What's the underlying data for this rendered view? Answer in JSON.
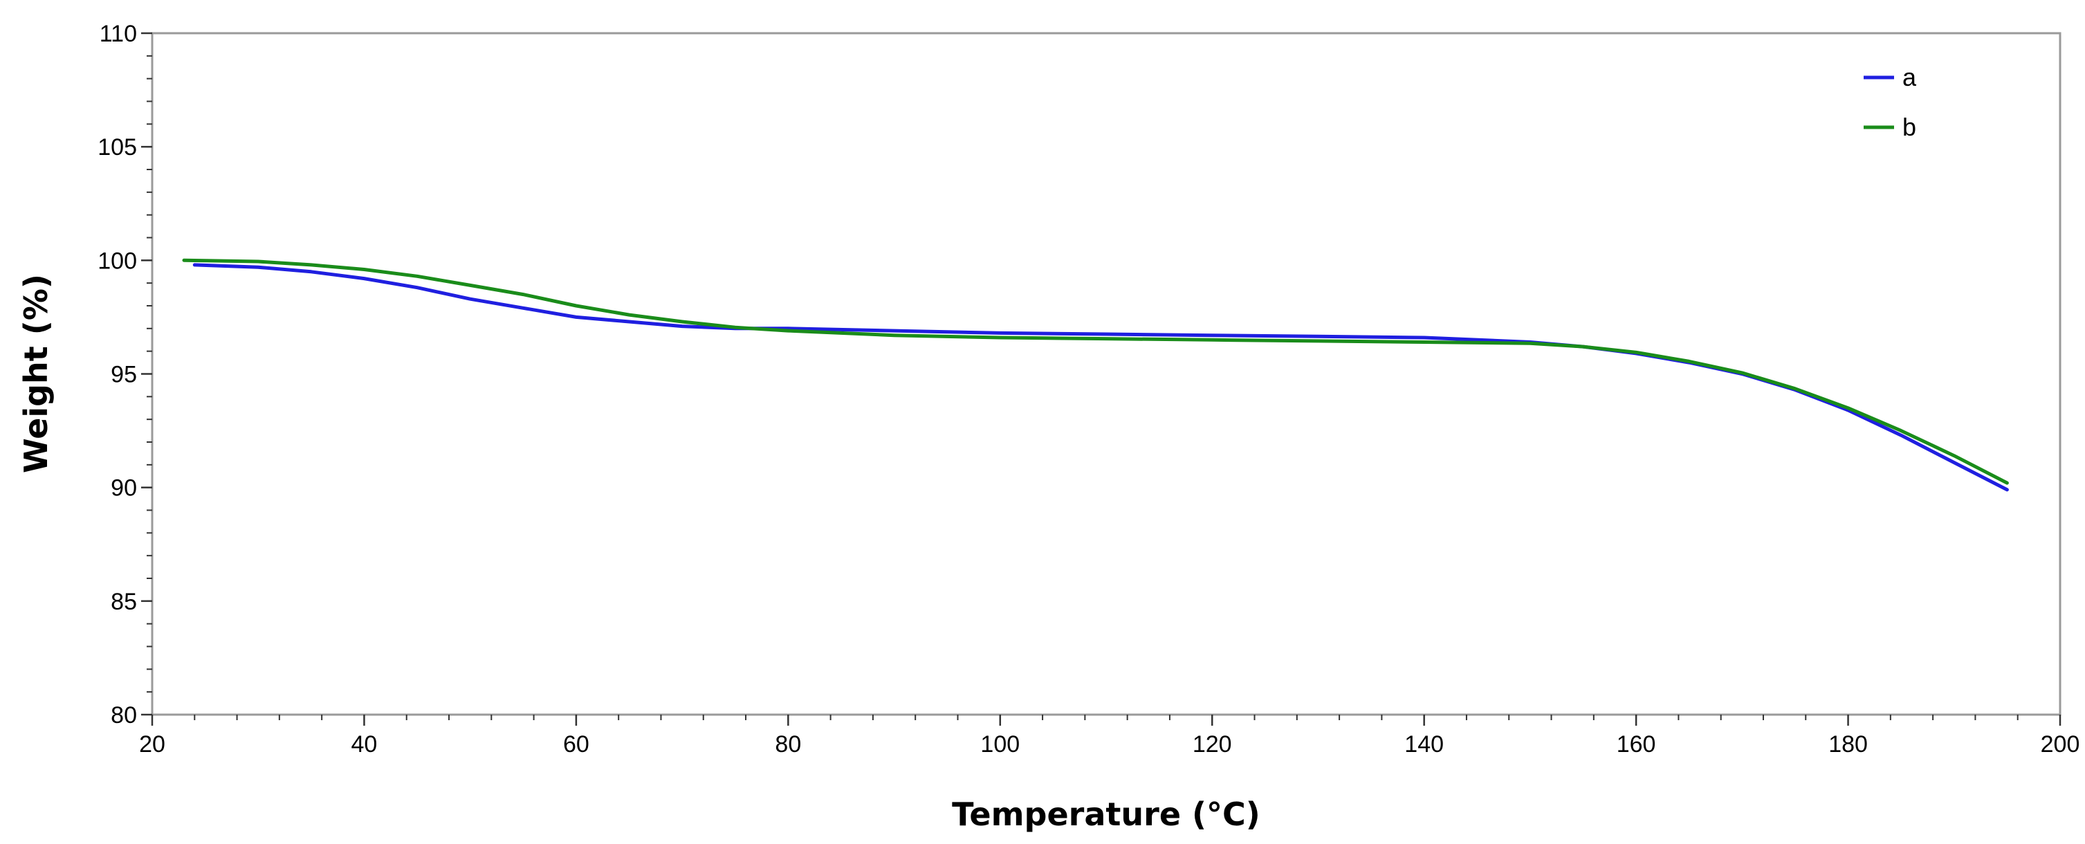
{
  "chart_data": {
    "type": "line",
    "title": "",
    "xlabel": "Temperature (°C)",
    "ylabel": "Weight (%)",
    "xlim": [
      20,
      200
    ],
    "ylim": [
      80,
      110
    ],
    "x_ticks": [
      20,
      40,
      60,
      80,
      100,
      120,
      140,
      160,
      180,
      200
    ],
    "y_ticks": [
      80,
      85,
      90,
      95,
      100,
      105,
      110
    ],
    "x_tick_labels": [
      "20",
      "40",
      "60",
      "80",
      "100",
      "120",
      "140",
      "160",
      "180",
      "200"
    ],
    "y_tick_labels": [
      "80",
      "85",
      "90",
      "95",
      "100",
      "105",
      "110"
    ],
    "grid": false,
    "legend_position": "top-right",
    "series": [
      {
        "name": "a",
        "color": "#1f1fe0",
        "x": [
          24,
          30,
          35,
          40,
          45,
          50,
          55,
          60,
          65,
          70,
          75,
          80,
          90,
          100,
          110,
          120,
          130,
          140,
          150,
          155,
          160,
          165,
          170,
          175,
          180,
          185,
          190,
          195
        ],
        "y": [
          99.8,
          99.7,
          99.5,
          99.2,
          98.8,
          98.3,
          97.9,
          97.5,
          97.3,
          97.1,
          97.0,
          97.0,
          96.9,
          96.8,
          96.75,
          96.7,
          96.65,
          96.6,
          96.4,
          96.2,
          95.9,
          95.5,
          95.0,
          94.3,
          93.4,
          92.3,
          91.1,
          89.9
        ]
      },
      {
        "name": "b",
        "color": "#1a8c1a",
        "x": [
          23,
          30,
          35,
          40,
          45,
          50,
          55,
          60,
          65,
          70,
          75,
          80,
          90,
          100,
          110,
          120,
          130,
          140,
          150,
          155,
          160,
          165,
          170,
          175,
          180,
          185,
          190,
          195
        ],
        "y": [
          100.0,
          99.95,
          99.8,
          99.6,
          99.3,
          98.9,
          98.5,
          98.0,
          97.6,
          97.3,
          97.05,
          96.9,
          96.7,
          96.6,
          96.55,
          96.5,
          96.45,
          96.4,
          96.35,
          96.2,
          95.95,
          95.55,
          95.05,
          94.35,
          93.5,
          92.5,
          91.4,
          90.2
        ]
      }
    ]
  }
}
